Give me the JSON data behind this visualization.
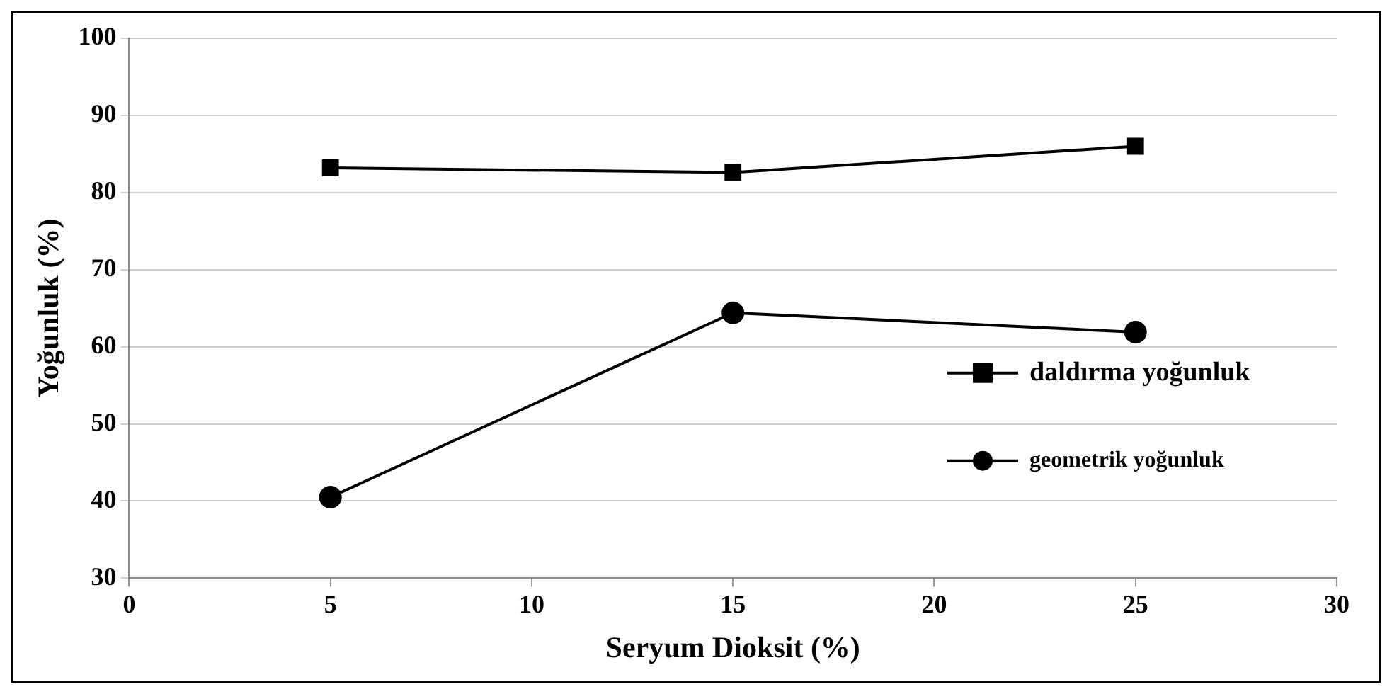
{
  "chart_data": {
    "type": "line",
    "xlabel": "Seryum Dioksit (%)",
    "ylabel": "Yoğunluk (%)",
    "x": [
      5,
      15,
      25
    ],
    "series": [
      {
        "name": "daldırma yoğunluk",
        "color": "#000000",
        "marker": "square",
        "values": [
          83.2,
          82.6,
          86.0
        ]
      },
      {
        "name": "geometrik yoğunluk",
        "color": "#000000",
        "marker": "circle",
        "values": [
          40.5,
          64.4,
          61.9
        ]
      }
    ],
    "xlim": [
      0,
      30
    ],
    "xticks": [
      0,
      5,
      10,
      15,
      20,
      25,
      30
    ],
    "ylim": [
      30,
      100
    ],
    "yticks": [
      30,
      40,
      50,
      60,
      70,
      80,
      90,
      100
    ],
    "grid": "y",
    "legend": "right",
    "line_style": "solid"
  }
}
